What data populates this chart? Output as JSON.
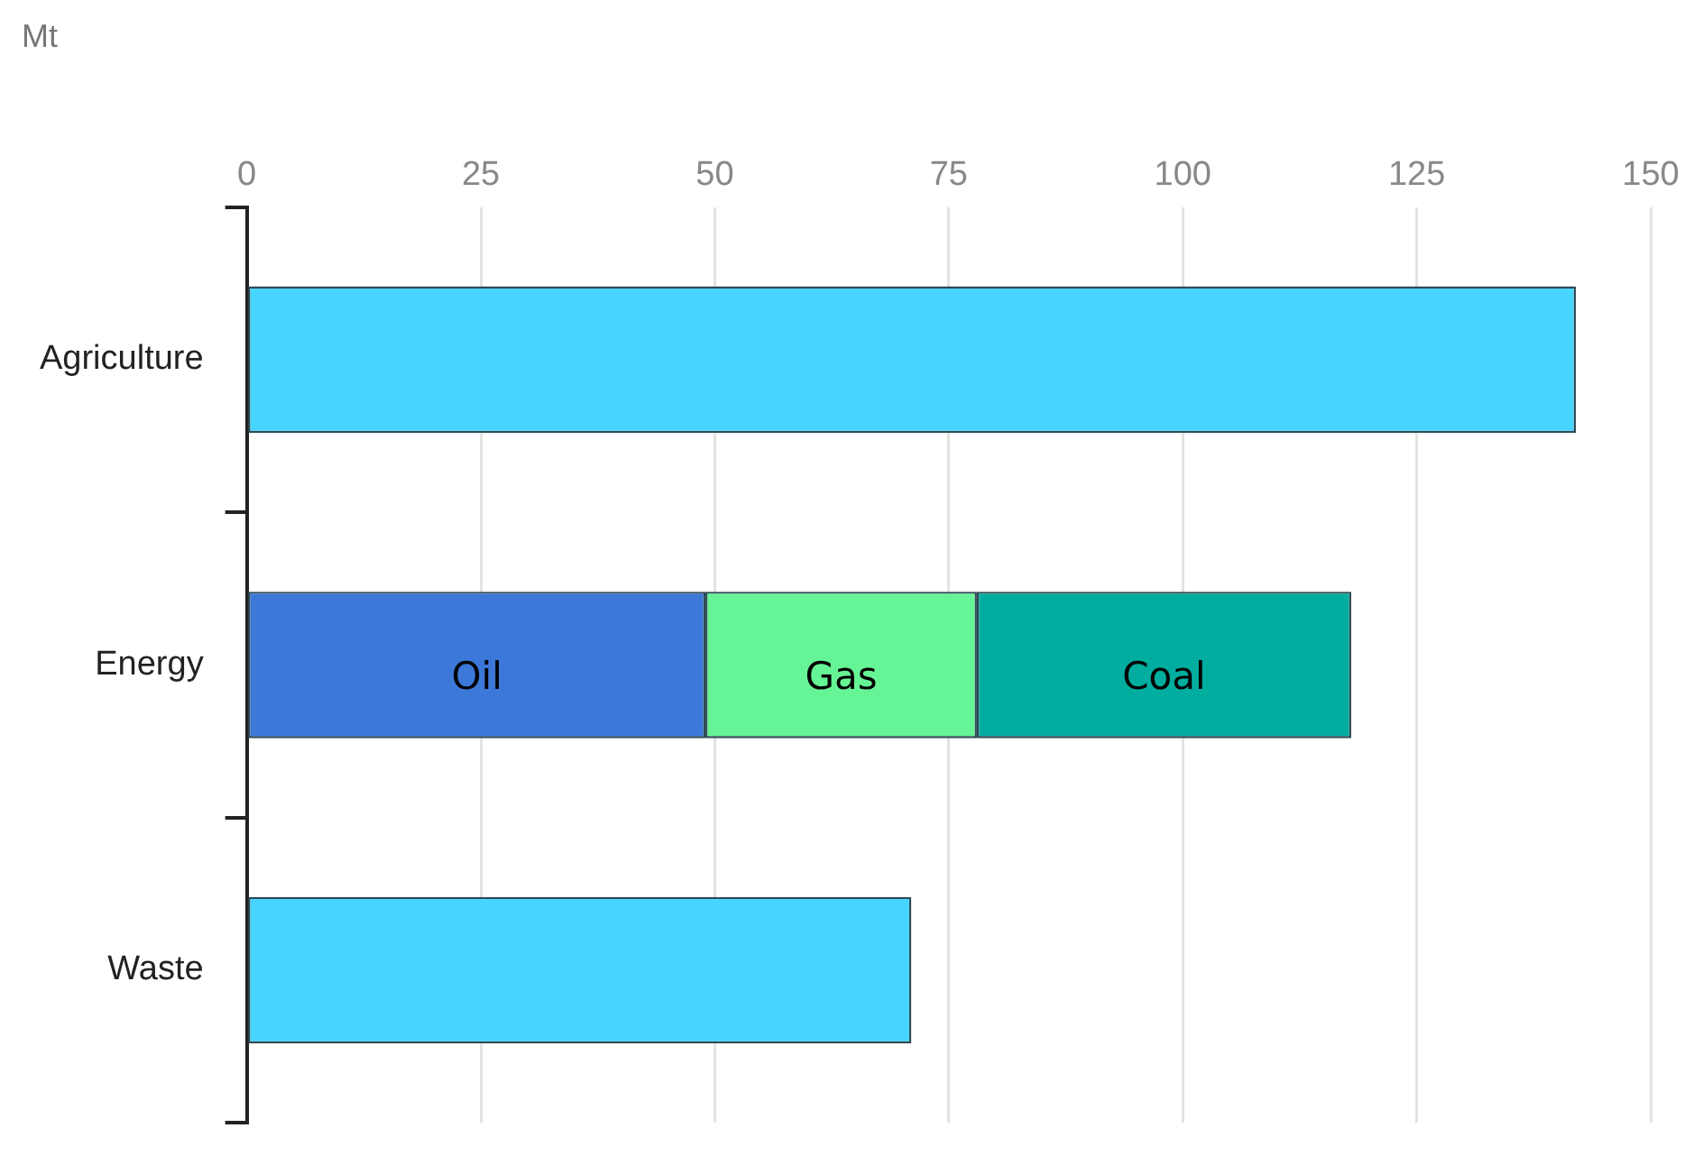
{
  "chart_data": {
    "type": "bar",
    "orientation": "horizontal",
    "stacked": true,
    "xlabel": "Mt",
    "categories": [
      "Agriculture",
      "Energy",
      "Waste"
    ],
    "series": [
      {
        "color": "#47d4ff",
        "values": [
          142,
          null,
          71
        ]
      },
      {
        "name": "Oil",
        "color": "#3c78d8",
        "values": [
          null,
          49,
          null
        ]
      },
      {
        "name": "Gas",
        "color": "#66f596",
        "values": [
          null,
          29,
          null
        ]
      },
      {
        "name": "Coal",
        "color": "#00ad9f",
        "values": [
          null,
          40,
          null
        ]
      }
    ],
    "xlim": [
      0,
      150
    ],
    "xticks": [
      0,
      25,
      50,
      75,
      100,
      125,
      150
    ],
    "grid": "x",
    "legend": false
  }
}
